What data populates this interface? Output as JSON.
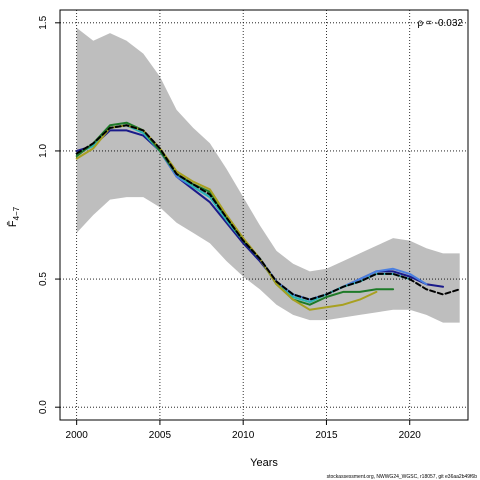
{
  "chart_data": {
    "type": "line",
    "xlabel": "Years",
    "ylabel": "F̄",
    "ylabel_sub": "4−7",
    "annotation": "ρ = -0.032",
    "credit": "stockassessment.org, NWWG24_WGSC, r18057, git e36aa2b49f6b",
    "xlim": [
      1999,
      2023.5
    ],
    "ylim": [
      -0.05,
      1.55
    ],
    "x_ticks": [
      2000,
      2005,
      2010,
      2015,
      2020
    ],
    "y_ticks": [
      0.0,
      0.5,
      1.0,
      1.5
    ],
    "y_tick_labels": [
      "0.0",
      "0.5",
      "1.0",
      "1.5"
    ],
    "grid": true,
    "band": {
      "x": [
        2000,
        2001,
        2002,
        2003,
        2004,
        2005,
        2006,
        2007,
        2008,
        2009,
        2010,
        2011,
        2012,
        2013,
        2014,
        2015,
        2016,
        2017,
        2018,
        2019,
        2020,
        2021,
        2022,
        2023
      ],
      "lower": [
        0.68,
        0.75,
        0.81,
        0.82,
        0.82,
        0.78,
        0.72,
        0.68,
        0.64,
        0.57,
        0.51,
        0.46,
        0.4,
        0.36,
        0.34,
        0.34,
        0.35,
        0.36,
        0.37,
        0.38,
        0.38,
        0.36,
        0.33,
        0.33
      ],
      "upper": [
        1.48,
        1.43,
        1.46,
        1.43,
        1.38,
        1.29,
        1.16,
        1.09,
        1.03,
        0.93,
        0.82,
        0.71,
        0.61,
        0.56,
        0.53,
        0.54,
        0.57,
        0.6,
        0.63,
        0.66,
        0.65,
        0.62,
        0.6,
        0.6
      ]
    },
    "series": [
      {
        "color": "#1a1a8a",
        "width": 2,
        "dash": "",
        "x": [
          2000,
          2001,
          2002,
          2003,
          2004,
          2005,
          2006,
          2007,
          2008,
          2009,
          2010,
          2011,
          2012,
          2013,
          2014,
          2015,
          2016,
          2017,
          2018,
          2019,
          2020,
          2021,
          2022
        ],
        "y": [
          1.0,
          1.02,
          1.08,
          1.08,
          1.06,
          1.0,
          0.9,
          0.85,
          0.8,
          0.72,
          0.64,
          0.57,
          0.49,
          0.44,
          0.42,
          0.44,
          0.47,
          0.5,
          0.53,
          0.53,
          0.51,
          0.48,
          0.47
        ]
      },
      {
        "color": "#4a7fe0",
        "width": 2,
        "dash": "",
        "x": [
          2000,
          2001,
          2002,
          2003,
          2004,
          2005,
          2006,
          2007,
          2008,
          2009,
          2010,
          2011,
          2012,
          2013,
          2014,
          2015,
          2016,
          2017,
          2018,
          2019,
          2020,
          2021
        ],
        "y": [
          0.99,
          1.02,
          1.09,
          1.1,
          1.07,
          1.0,
          0.9,
          0.86,
          0.82,
          0.73,
          0.65,
          0.58,
          0.49,
          0.44,
          0.42,
          0.44,
          0.47,
          0.5,
          0.53,
          0.54,
          0.52,
          0.48
        ]
      },
      {
        "color": "#2bb4b4",
        "width": 2,
        "dash": "",
        "x": [
          2000,
          2001,
          2002,
          2003,
          2004,
          2005,
          2006,
          2007,
          2008,
          2009,
          2010,
          2011,
          2012,
          2013,
          2014,
          2015,
          2016,
          2017,
          2018,
          2019,
          2020
        ],
        "y": [
          0.99,
          1.02,
          1.09,
          1.1,
          1.07,
          1.0,
          0.91,
          0.86,
          0.82,
          0.73,
          0.65,
          0.58,
          0.48,
          0.43,
          0.41,
          0.44,
          0.47,
          0.49,
          0.52,
          0.52,
          0.5
        ]
      },
      {
        "color": "#1e7a28",
        "width": 2,
        "dash": "",
        "x": [
          2000,
          2001,
          2002,
          2003,
          2004,
          2005,
          2006,
          2007,
          2008,
          2009,
          2010,
          2011,
          2012,
          2013,
          2014,
          2015,
          2016,
          2017,
          2018,
          2019
        ],
        "y": [
          0.98,
          1.03,
          1.1,
          1.11,
          1.08,
          1.0,
          0.91,
          0.87,
          0.84,
          0.74,
          0.65,
          0.58,
          0.48,
          0.42,
          0.4,
          0.43,
          0.45,
          0.45,
          0.46,
          0.46
        ]
      },
      {
        "color": "#a8a020",
        "width": 2,
        "dash": "",
        "x": [
          2000,
          2001,
          2002,
          2003,
          2004,
          2005,
          2006,
          2007,
          2008,
          2009,
          2010,
          2011,
          2012,
          2013,
          2014,
          2015,
          2016,
          2017,
          2018
        ],
        "y": [
          0.97,
          1.01,
          1.09,
          1.1,
          1.08,
          1.01,
          0.92,
          0.88,
          0.85,
          0.75,
          0.66,
          0.58,
          0.48,
          0.42,
          0.38,
          0.39,
          0.4,
          0.42,
          0.45
        ]
      },
      {
        "color": "#000000",
        "width": 2,
        "dash": "5,3",
        "x": [
          2000,
          2001,
          2002,
          2003,
          2004,
          2005,
          2006,
          2007,
          2008,
          2009,
          2010,
          2011,
          2012,
          2013,
          2014,
          2015,
          2016,
          2017,
          2018,
          2019,
          2020,
          2021,
          2022,
          2023
        ],
        "y": [
          0.99,
          1.03,
          1.09,
          1.1,
          1.08,
          1.01,
          0.91,
          0.87,
          0.83,
          0.74,
          0.65,
          0.58,
          0.49,
          0.44,
          0.42,
          0.44,
          0.47,
          0.49,
          0.52,
          0.52,
          0.5,
          0.46,
          0.44,
          0.46
        ]
      }
    ]
  }
}
